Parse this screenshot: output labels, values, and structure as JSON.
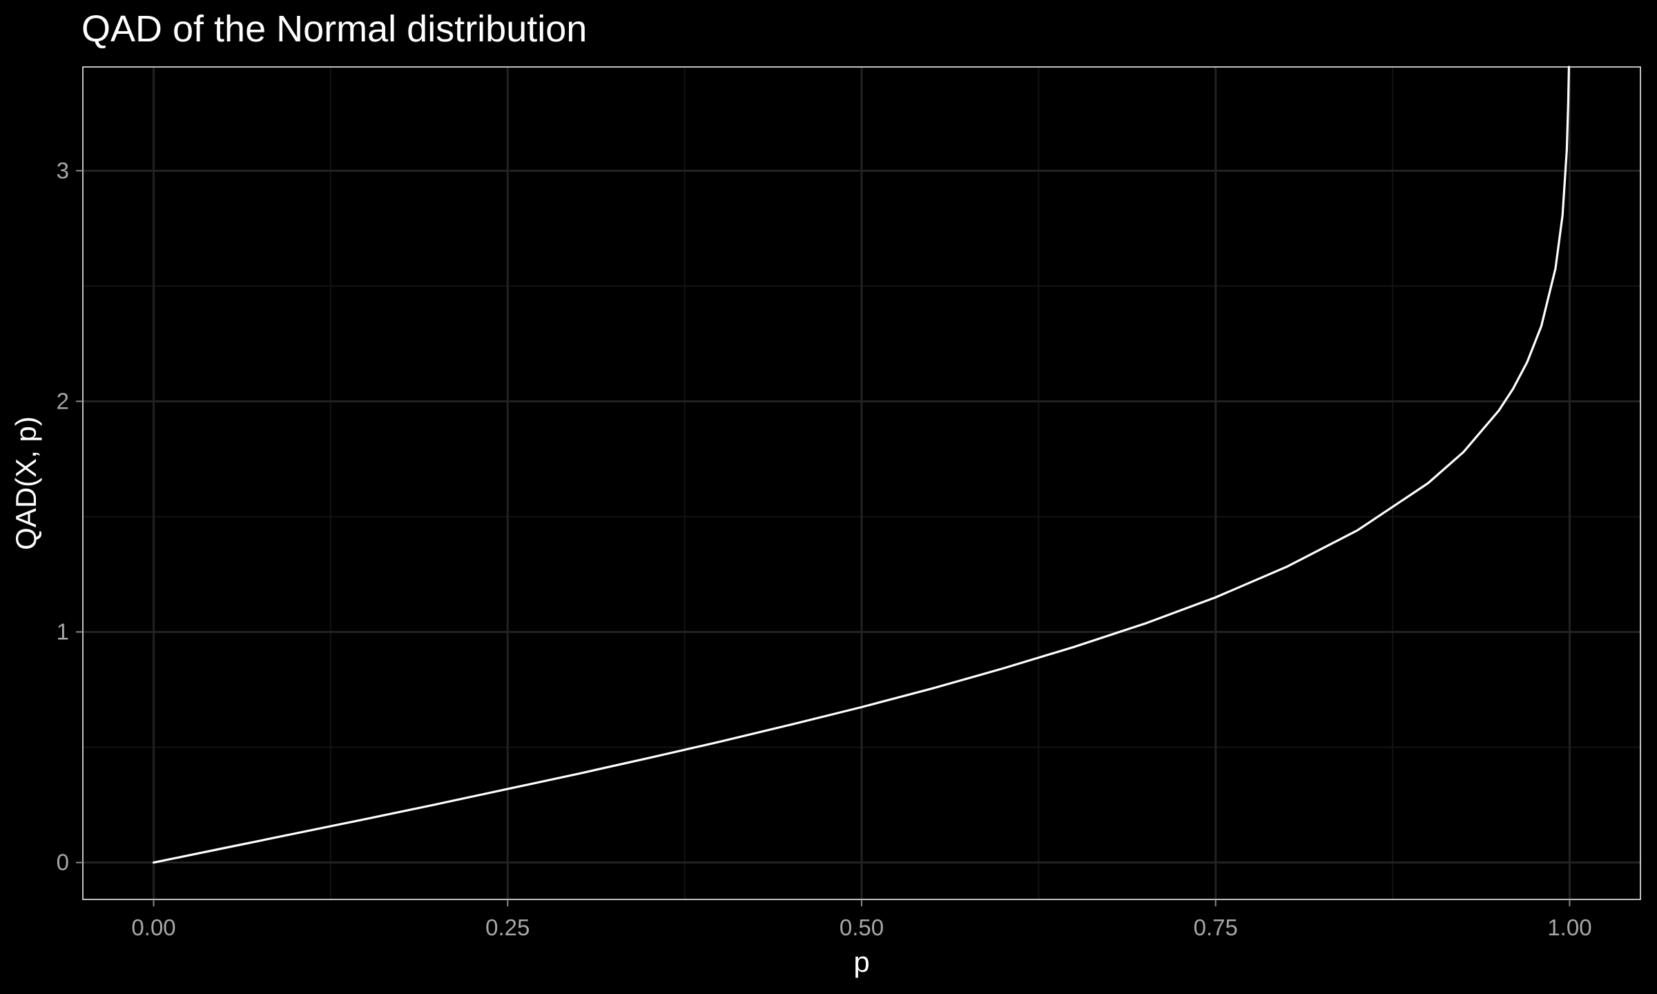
{
  "chart_data": {
    "type": "line",
    "title": "QAD of the Normal distribution",
    "xlabel": "p",
    "ylabel": "QAD(X, p)",
    "xlim": [
      -0.05,
      1.05
    ],
    "ylim": [
      -0.16,
      3.45
    ],
    "x_ticks": [
      0,
      0.25,
      0.5,
      0.75,
      1
    ],
    "x_tick_labels": [
      "0.00",
      "0.25",
      "0.50",
      "0.75",
      "1.00"
    ],
    "y_ticks": [
      0,
      1,
      2,
      3
    ],
    "y_tick_labels": [
      "0",
      "1",
      "2",
      "3"
    ],
    "x_minor_ticks": [
      0.125,
      0.375,
      0.625,
      0.875
    ],
    "y_minor_ticks": [
      0.5,
      1.5,
      2.5
    ],
    "grid": true,
    "legend": "none",
    "series": [
      {
        "x": [
          0,
          0.05,
          0.1,
          0.15,
          0.2,
          0.25,
          0.3,
          0.35,
          0.4,
          0.45,
          0.5,
          0.55,
          0.6,
          0.65,
          0.7,
          0.75,
          0.8,
          0.85,
          0.9,
          0.925,
          0.95,
          0.96,
          0.97,
          0.98,
          0.99,
          0.995,
          0.998,
          0.999,
          0.9995
        ],
        "y": [
          0,
          0.063,
          0.126,
          0.189,
          0.253,
          0.319,
          0.385,
          0.454,
          0.524,
          0.598,
          0.674,
          0.755,
          0.842,
          0.935,
          1.036,
          1.15,
          1.282,
          1.44,
          1.645,
          1.78,
          1.96,
          2.054,
          2.17,
          2.326,
          2.576,
          2.807,
          3.09,
          3.291,
          3.481
        ]
      }
    ],
    "colors": {
      "background": "#000000",
      "panel_border": "#ffffff",
      "grid_major": "#222222",
      "grid_minor": "#131313",
      "line": "#ffffff",
      "tick_label": "#a8a8a8",
      "text": "#ffffff"
    }
  }
}
